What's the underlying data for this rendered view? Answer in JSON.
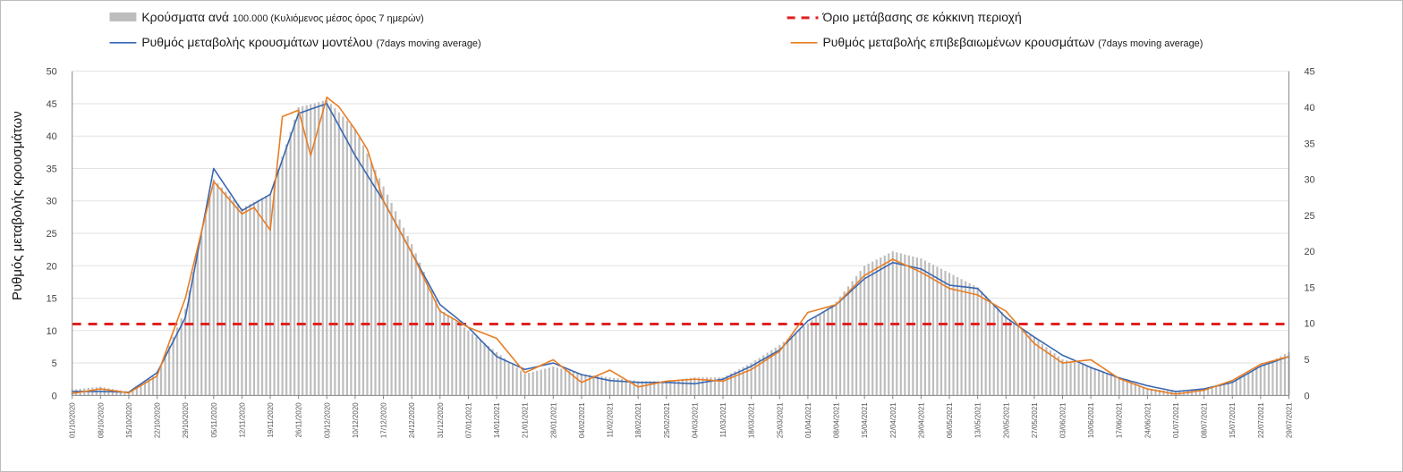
{
  "chart_data": {
    "type": "bar",
    "ylabel": "Ρυθμός μεταβολής κρουσμάτων",
    "ylim_left": [
      0,
      50
    ],
    "ylim_right": [
      0,
      45
    ],
    "left_ticks": [
      0,
      5,
      10,
      15,
      20,
      25,
      30,
      35,
      40,
      45,
      50
    ],
    "right_ticks": [
      0,
      5,
      10,
      15,
      20,
      25,
      30,
      35,
      40,
      45
    ],
    "grid": true,
    "legend_placement": "top",
    "legend": {
      "bars": {
        "main": "Κρούσματα ανά ",
        "small": "100.000 (Κυλιόμενος μέσος όρος 7 ημερών)"
      },
      "model": {
        "main": "Ρυθμός μεταβολής κρουσμάτων μοντέλου ",
        "small": "(7days moving average)"
      },
      "threshold": {
        "main": "Όριο μετάβασης σε κόκκινη περιοχή",
        "small": ""
      },
      "confirmed": {
        "main": "Ρυθμός μεταβολής επιβεβαιωμένων κρουσμάτων ",
        "small": "(7days moving average)"
      }
    },
    "threshold_value": 11,
    "colors": {
      "bars": "#bdbdbd",
      "model": "#3a67b0",
      "confirmed": "#e87d24",
      "threshold": "#e02020",
      "grid": "#e2e2e2"
    },
    "x_labels": [
      "01/10/2020",
      "08/10/2020",
      "15/10/2020",
      "22/10/2020",
      "29/10/2020",
      "05/11/2020",
      "12/11/2020",
      "19/11/2020",
      "26/11/2020",
      "03/12/2020",
      "10/12/2020",
      "17/12/2020",
      "24/12/2020",
      "31/12/2020",
      "07/01/2021",
      "14/01/2021",
      "21/01/2021",
      "28/01/2021",
      "04/02/2021",
      "11/02/2021",
      "18/02/2021",
      "25/02/2021",
      "04/03/2021",
      "11/03/2021",
      "18/03/2021",
      "25/03/2021",
      "01/04/2021",
      "08/04/2021",
      "15/04/2021",
      "22/04/2021",
      "29/04/2021",
      "06/05/2021",
      "13/05/2021",
      "20/05/2021",
      "27/05/2021",
      "03/06/2021",
      "10/06/2021",
      "17/06/2021",
      "24/06/2021",
      "01/07/2021",
      "08/07/2021",
      "15/07/2021",
      "22/07/2021",
      "29/07/2021"
    ],
    "series": [
      {
        "name": "Ρυθμός μεταβολής κρουσμάτων μοντέλου",
        "axis": "left",
        "x": [
          0,
          7,
          14,
          21,
          28,
          35,
          42,
          49,
          56,
          63,
          70,
          77,
          84,
          91,
          98,
          105,
          112,
          119,
          126,
          133,
          140,
          147,
          154,
          161,
          168,
          175,
          182,
          189,
          196,
          203,
          210,
          217,
          224,
          231,
          238,
          245,
          252,
          259,
          266,
          273,
          280,
          287,
          294,
          301
        ],
        "values": [
          0.6,
          0.6,
          0.5,
          3.5,
          12,
          35,
          28.5,
          31,
          43.5,
          45,
          37,
          30,
          22,
          14,
          10.5,
          6,
          4,
          5,
          3.2,
          2.3,
          2,
          2,
          1.8,
          2.5,
          4.5,
          7,
          11.5,
          14,
          18,
          20.5,
          19.5,
          17,
          16.5,
          12,
          9,
          6.2,
          4.3,
          2.7,
          1.5,
          0.6,
          1,
          2,
          4.5,
          6
        ]
      },
      {
        "name": "Ρυθμός μεταβολής επιβεβαιωμένων κρουσμάτων",
        "axis": "left",
        "x": [
          0,
          7,
          14,
          21,
          28,
          35,
          42,
          45,
          49,
          52,
          56,
          59,
          63,
          66,
          70,
          73,
          77,
          84,
          91,
          98,
          105,
          112,
          119,
          126,
          133,
          140,
          147,
          154,
          161,
          168,
          175,
          182,
          189,
          196,
          203,
          210,
          217,
          224,
          231,
          238,
          245,
          252,
          259,
          266,
          273,
          280,
          287,
          294,
          301
        ],
        "values": [
          0.3,
          1,
          0.4,
          3,
          15,
          33,
          28,
          29,
          25.5,
          43,
          44,
          37,
          46,
          44.5,
          41,
          38,
          30,
          22,
          13,
          10.5,
          8.8,
          3.5,
          5.5,
          2,
          3.9,
          1.3,
          2.2,
          2.5,
          2.2,
          4,
          6.8,
          12.8,
          14,
          18.5,
          21,
          19,
          16.5,
          15.5,
          13,
          8,
          5,
          5.5,
          2.6,
          1,
          0.2,
          0.8,
          2.3,
          4.8,
          6
        ]
      },
      {
        "name": "Κρούσματα ανά 100.000",
        "axis": "right",
        "x": [
          0,
          7,
          14,
          21,
          28,
          35,
          42,
          49,
          56,
          63,
          70,
          77,
          84,
          91,
          98,
          105,
          112,
          119,
          126,
          133,
          140,
          147,
          154,
          161,
          168,
          175,
          182,
          189,
          196,
          203,
          210,
          217,
          224,
          231,
          238,
          245,
          252,
          259,
          266,
          273,
          280,
          287,
          294,
          301
        ],
        "values": [
          0.8,
          1.2,
          0.5,
          3,
          12,
          30,
          26,
          28,
          40,
          41,
          37,
          29,
          21,
          12,
          9,
          6,
          3,
          4,
          3,
          2.5,
          2,
          2,
          2.5,
          2.5,
          4.5,
          7,
          10,
          13,
          18,
          20,
          19,
          17,
          15,
          11,
          8,
          5,
          4,
          2.5,
          1,
          0.5,
          1,
          2,
          4,
          6
        ]
      }
    ]
  }
}
